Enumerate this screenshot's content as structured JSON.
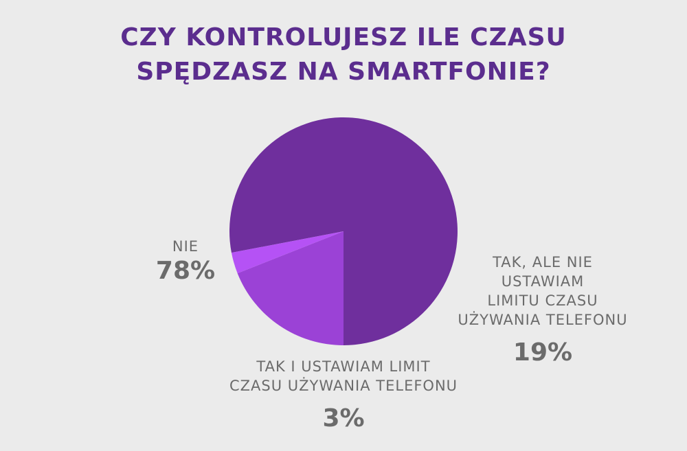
{
  "title": {
    "line1": "CZY KONTROLUJESZ ILE CZASU",
    "line2": "SPĘDZASZ NA SMARTFONIE?"
  },
  "chart_data": {
    "type": "pie",
    "title": "CZY KONTROLUJESZ ILE CZASU SPĘDZASZ NA SMARTFONIE?",
    "slices": [
      {
        "label_lines": [
          "NIE"
        ],
        "value": 78,
        "value_label": "78%",
        "color": "#6f2f9d"
      },
      {
        "label_lines": [
          "TAK, ALE NIE",
          "USTAWIAM",
          "LIMITU CZASU",
          "UŻYWANIA TELEFONU"
        ],
        "value": 19,
        "value_label": "19%",
        "color": "#9b42d6"
      },
      {
        "label_lines": [
          "TAK I USTAWIAM LIMIT",
          "CZASU UŻYWANIA TELEFONU"
        ],
        "value": 3,
        "value_label": "3%",
        "color": "#b552f5"
      }
    ]
  }
}
